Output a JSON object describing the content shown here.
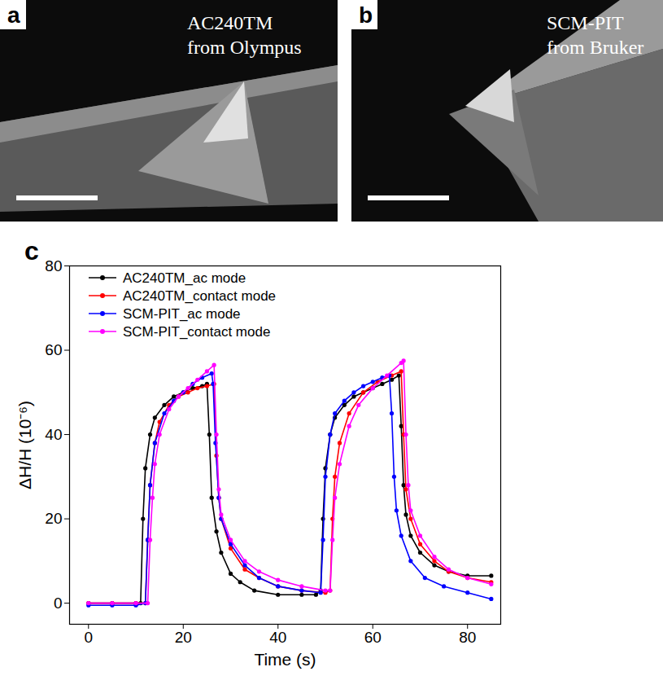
{
  "panels": [
    {
      "label": "a",
      "caption": [
        "AC240TM",
        "from Olympus"
      ]
    },
    {
      "label": "b",
      "caption": [
        "SCM-PIT",
        "from Bruker"
      ]
    }
  ],
  "chart_data": {
    "type": "line",
    "panel_label": "c",
    "x_label": "Time (s)",
    "y_label": "ΔH/H (10⁻⁶)",
    "xlim": [
      -4,
      87
    ],
    "xticks": [
      0,
      20,
      40,
      60,
      80
    ],
    "ylim": [
      -5,
      80
    ],
    "yticks": [
      0,
      20,
      40,
      60,
      80
    ],
    "legend": "upper left",
    "marker": "circle",
    "line_style": "solid",
    "series": [
      {
        "name": "AC240TM_ac mode",
        "color": "#000000",
        "x": [
          0,
          5,
          10,
          11,
          11.5,
          12,
          13,
          14,
          16,
          18,
          20,
          22,
          24,
          25,
          25.5,
          26,
          27,
          28,
          30,
          32,
          35,
          40,
          45,
          48,
          49,
          49.5,
          50,
          51,
          52,
          54,
          56,
          58,
          60,
          62,
          64,
          65.5,
          66,
          66.5,
          67,
          68,
          70,
          73,
          76,
          80,
          85
        ],
        "values": [
          0,
          0,
          0,
          0,
          20,
          32,
          40,
          44,
          47,
          49,
          50,
          51,
          51.5,
          52,
          40,
          25,
          17,
          12,
          7,
          5,
          3,
          2,
          2,
          2,
          3,
          20,
          32,
          40,
          44,
          47,
          49,
          50,
          51,
          52,
          53,
          54,
          42,
          28,
          21,
          16,
          12,
          9,
          7.5,
          6.5,
          6.5
        ]
      },
      {
        "name": "AC240TM_contact mode",
        "color": "#ff0000",
        "x": [
          0,
          5,
          10,
          12,
          12.5,
          13,
          14,
          15,
          17,
          19,
          21,
          23,
          25,
          26.5,
          27,
          27.5,
          28,
          30,
          33,
          36,
          40,
          45,
          50,
          51,
          51.5,
          52,
          53,
          55,
          58,
          61,
          64,
          66,
          66.5,
          67,
          68,
          70,
          73,
          76,
          80,
          85
        ],
        "values": [
          0,
          0,
          0,
          0,
          15,
          28,
          38,
          43,
          47,
          49,
          50,
          51,
          51.5,
          52,
          35,
          25,
          20,
          13,
          8,
          6,
          4,
          3,
          2.5,
          3,
          20,
          30,
          38,
          45,
          50,
          52.5,
          54,
          55,
          40,
          27,
          20,
          14,
          10,
          7.5,
          6,
          5
        ]
      },
      {
        "name": "SCM-PIT_ac mode",
        "color": "#0000ff",
        "x": [
          0,
          5,
          10,
          12,
          12.5,
          13,
          14,
          16,
          18,
          20,
          22,
          24,
          26,
          26.3,
          26.8,
          27.5,
          28,
          30,
          33,
          36,
          40,
          45,
          49,
          49.5,
          50,
          51,
          52,
          54,
          56,
          58,
          60,
          62,
          63.5,
          64,
          64.5,
          65,
          66,
          68,
          71,
          75,
          80,
          85
        ],
        "values": [
          -0.5,
          -0.5,
          -0.5,
          0,
          15,
          28,
          38,
          45,
          48,
          50,
          52,
          53.5,
          54.5,
          52,
          38,
          25,
          20,
          14,
          9,
          6,
          4,
          3,
          2.5,
          15,
          30,
          40,
          45,
          48,
          50,
          51.5,
          52.5,
          53.5,
          54,
          45,
          30,
          22,
          16,
          10,
          6,
          4,
          2.5,
          1
        ]
      },
      {
        "name": "SCM-PIT_contact mode",
        "color": "#ff00ff",
        "x": [
          0,
          5,
          10,
          12.5,
          13,
          13.5,
          14,
          15,
          17,
          19,
          21,
          23,
          25,
          26.5,
          27,
          27.5,
          28,
          30,
          33,
          36,
          40,
          45,
          50,
          51,
          51.5,
          52,
          53,
          55,
          57,
          60,
          63,
          66,
          66.5,
          67,
          67.5,
          68,
          70,
          73,
          76,
          80,
          85
        ],
        "values": [
          0,
          0,
          0,
          0,
          15,
          25,
          33,
          40,
          46,
          49,
          51,
          53,
          55,
          56.5,
          40,
          27,
          21,
          15,
          10,
          7.5,
          5.5,
          4,
          3,
          3,
          15,
          25,
          33,
          42,
          47,
          51,
          54,
          57,
          57.5,
          40,
          28,
          22,
          16,
          11,
          8,
          6,
          4.5
        ]
      }
    ]
  }
}
